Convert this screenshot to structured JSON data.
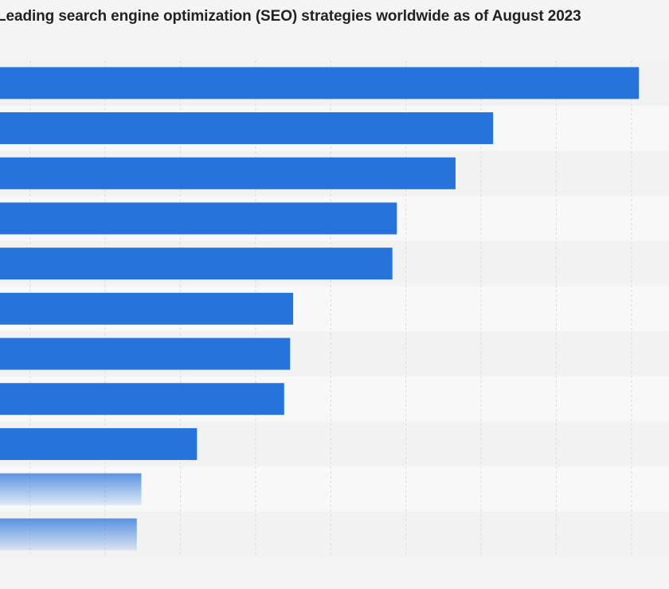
{
  "chart_data": {
    "type": "bar",
    "orientation": "horizontal",
    "title": "Leading search engine optimization (SEO) strategies worldwide as of August 2023",
    "categories": [
      "",
      "",
      "",
      "",
      "",
      "",
      "",
      "",
      "",
      "",
      ""
    ],
    "values": [
      40.5,
      30.8,
      28.3,
      24.4,
      24.1,
      17.5,
      17.3,
      16.9,
      11.1,
      7.4,
      7.1
    ],
    "xlim": [
      -2,
      42.5
    ],
    "grid": true,
    "colors": {
      "bar": "#2673dc",
      "bar_faded": "#c9daf4",
      "grid": "#dcdcdc",
      "band_a": "#f2f2f2",
      "band_b": "#f8f8f8"
    }
  }
}
